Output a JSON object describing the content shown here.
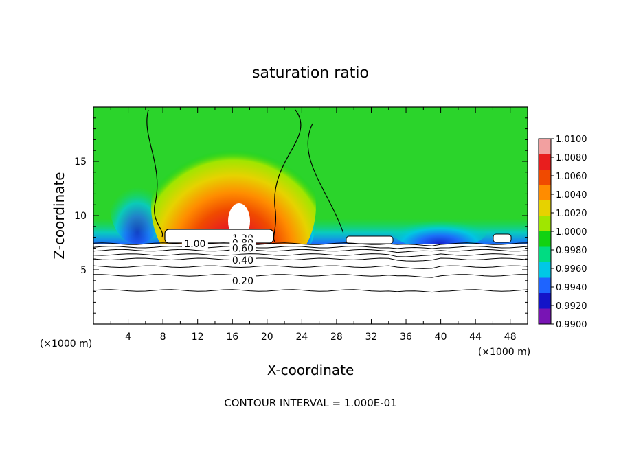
{
  "chart_data": {
    "type": "heatmap",
    "title": "saturation ratio",
    "xlabel": "X-coordinate",
    "ylabel": "Z-coordinate",
    "x_unit_left": "(×1000 m)",
    "x_unit_right": "(×1000 m)",
    "xlim": [
      0,
      50
    ],
    "ylim": [
      0,
      20
    ],
    "x_ticks": [
      4,
      8,
      12,
      16,
      20,
      24,
      28,
      32,
      36,
      40,
      44,
      48
    ],
    "y_ticks": [
      5,
      10,
      15
    ],
    "footer": "CONTOUR INTERVAL = 1.000E-01",
    "colorbar": {
      "levels": [
        "1.0100",
        "1.0080",
        "1.0060",
        "1.0040",
        "1.0020",
        "1.0000",
        "0.9980",
        "0.9960",
        "0.9940",
        "0.9920",
        "0.9900"
      ],
      "colors": [
        "#f2a0a0",
        "#e81e1e",
        "#f04a00",
        "#ff8c00",
        "#e6d200",
        "#a0e600",
        "#12d212",
        "#00dc82",
        "#00c8e6",
        "#1e64ff",
        "#1414c8",
        "#7814b4"
      ]
    },
    "contour_labels": [
      {
        "text": "1.20",
        "x": 17.2,
        "y": 7.9
      },
      {
        "text": "1.00",
        "x": 11.7,
        "y": 7.4
      },
      {
        "text": "0.80",
        "x": 17.2,
        "y": 7.5
      },
      {
        "text": "0.60",
        "x": 17.2,
        "y": 7.0
      },
      {
        "text": "0.40",
        "x": 17.2,
        "y": 5.9
      },
      {
        "text": "0.20",
        "x": 17.2,
        "y": 4.0
      }
    ],
    "contour_levels_z": [
      3.1,
      4.5,
      5.3,
      6.0,
      6.4,
      6.8,
      7.1,
      7.4
    ]
  }
}
